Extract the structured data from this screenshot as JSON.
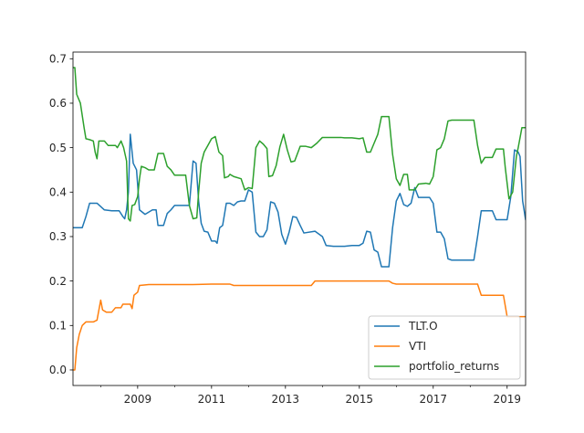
{
  "chart_data": {
    "type": "line",
    "title": "",
    "xlabel": "",
    "ylabel": "",
    "xlim": [
      2007.25,
      2019.5
    ],
    "ylim": [
      -0.035,
      0.715
    ],
    "grid": false,
    "legend_position": "lower-right",
    "y_ticks": [
      0.0,
      0.1,
      0.2,
      0.3,
      0.4,
      0.5,
      0.6,
      0.7
    ],
    "y_tick_labels": [
      "0.0",
      "0.1",
      "0.2",
      "0.3",
      "0.4",
      "0.5",
      "0.6",
      "0.7"
    ],
    "x_ticks": [
      2009,
      2011,
      2013,
      2015,
      2017,
      2019
    ],
    "x_tick_labels": [
      "2009",
      "2011",
      "2013",
      "2015",
      "2017",
      "2019"
    ],
    "x_minor_ticks": [
      2008,
      2010,
      2012,
      2014,
      2016,
      2018
    ],
    "series": [
      {
        "name": "TLT.O",
        "color": "#1f77b4",
        "points": [
          [
            2007.25,
            0.32
          ],
          [
            2007.5,
            0.32
          ],
          [
            2007.6,
            0.345
          ],
          [
            2007.7,
            0.375
          ],
          [
            2007.9,
            0.375
          ],
          [
            2008.1,
            0.36
          ],
          [
            2008.3,
            0.358
          ],
          [
            2008.5,
            0.358
          ],
          [
            2008.6,
            0.345
          ],
          [
            2008.65,
            0.34
          ],
          [
            2008.7,
            0.36
          ],
          [
            2008.75,
            0.4
          ],
          [
            2008.8,
            0.53
          ],
          [
            2008.88,
            0.465
          ],
          [
            2008.97,
            0.45
          ],
          [
            2009.05,
            0.36
          ],
          [
            2009.2,
            0.35
          ],
          [
            2009.4,
            0.36
          ],
          [
            2009.5,
            0.36
          ],
          [
            2009.55,
            0.325
          ],
          [
            2009.7,
            0.325
          ],
          [
            2009.8,
            0.352
          ],
          [
            2009.9,
            0.36
          ],
          [
            2010.0,
            0.37
          ],
          [
            2010.3,
            0.37
          ],
          [
            2010.4,
            0.37
          ],
          [
            2010.5,
            0.47
          ],
          [
            2010.58,
            0.465
          ],
          [
            2010.65,
            0.38
          ],
          [
            2010.72,
            0.33
          ],
          [
            2010.8,
            0.312
          ],
          [
            2010.9,
            0.31
          ],
          [
            2011.0,
            0.29
          ],
          [
            2011.1,
            0.29
          ],
          [
            2011.15,
            0.285
          ],
          [
            2011.22,
            0.32
          ],
          [
            2011.3,
            0.325
          ],
          [
            2011.4,
            0.375
          ],
          [
            2011.5,
            0.375
          ],
          [
            2011.6,
            0.37
          ],
          [
            2011.7,
            0.378
          ],
          [
            2011.8,
            0.38
          ],
          [
            2011.9,
            0.38
          ],
          [
            2012.0,
            0.405
          ],
          [
            2012.1,
            0.4
          ],
          [
            2012.2,
            0.31
          ],
          [
            2012.3,
            0.3
          ],
          [
            2012.4,
            0.3
          ],
          [
            2012.5,
            0.315
          ],
          [
            2012.6,
            0.378
          ],
          [
            2012.7,
            0.375
          ],
          [
            2012.8,
            0.355
          ],
          [
            2012.9,
            0.305
          ],
          [
            2013.0,
            0.283
          ],
          [
            2013.1,
            0.31
          ],
          [
            2013.2,
            0.345
          ],
          [
            2013.3,
            0.343
          ],
          [
            2013.4,
            0.325
          ],
          [
            2013.5,
            0.308
          ],
          [
            2013.8,
            0.312
          ],
          [
            2014.0,
            0.3
          ],
          [
            2014.1,
            0.28
          ],
          [
            2014.3,
            0.278
          ],
          [
            2014.5,
            0.278
          ],
          [
            2014.6,
            0.278
          ],
          [
            2014.8,
            0.28
          ],
          [
            2015.0,
            0.28
          ],
          [
            2015.1,
            0.285
          ],
          [
            2015.2,
            0.312
          ],
          [
            2015.3,
            0.31
          ],
          [
            2015.4,
            0.27
          ],
          [
            2015.5,
            0.265
          ],
          [
            2015.6,
            0.232
          ],
          [
            2015.8,
            0.232
          ],
          [
            2015.9,
            0.32
          ],
          [
            2016.0,
            0.38
          ],
          [
            2016.1,
            0.397
          ],
          [
            2016.2,
            0.372
          ],
          [
            2016.3,
            0.368
          ],
          [
            2016.4,
            0.375
          ],
          [
            2016.5,
            0.41
          ],
          [
            2016.6,
            0.388
          ],
          [
            2016.8,
            0.388
          ],
          [
            2016.9,
            0.388
          ],
          [
            2017.0,
            0.375
          ],
          [
            2017.1,
            0.31
          ],
          [
            2017.2,
            0.31
          ],
          [
            2017.3,
            0.295
          ],
          [
            2017.4,
            0.25
          ],
          [
            2017.5,
            0.247
          ],
          [
            2017.7,
            0.247
          ],
          [
            2017.9,
            0.247
          ],
          [
            2018.0,
            0.247
          ],
          [
            2018.1,
            0.247
          ],
          [
            2018.2,
            0.3
          ],
          [
            2018.3,
            0.358
          ],
          [
            2018.5,
            0.358
          ],
          [
            2018.6,
            0.358
          ],
          [
            2018.7,
            0.338
          ],
          [
            2018.9,
            0.338
          ],
          [
            2019.0,
            0.338
          ],
          [
            2019.1,
            0.39
          ],
          [
            2019.2,
            0.495
          ],
          [
            2019.3,
            0.49
          ],
          [
            2019.35,
            0.48
          ],
          [
            2019.42,
            0.38
          ],
          [
            2019.5,
            0.338
          ],
          [
            2019.6,
            0.338
          ],
          [
            2019.7,
            0.338
          ]
        ]
      },
      {
        "name": "VTI",
        "color": "#ff7f0e",
        "points": [
          [
            2007.25,
            0.0
          ],
          [
            2007.3,
            0.0
          ],
          [
            2007.35,
            0.05
          ],
          [
            2007.42,
            0.08
          ],
          [
            2007.5,
            0.1
          ],
          [
            2007.6,
            0.108
          ],
          [
            2007.8,
            0.108
          ],
          [
            2007.9,
            0.112
          ],
          [
            2008.0,
            0.157
          ],
          [
            2008.05,
            0.135
          ],
          [
            2008.15,
            0.13
          ],
          [
            2008.3,
            0.13
          ],
          [
            2008.4,
            0.14
          ],
          [
            2008.55,
            0.14
          ],
          [
            2008.6,
            0.148
          ],
          [
            2008.8,
            0.148
          ],
          [
            2008.85,
            0.138
          ],
          [
            2008.9,
            0.168
          ],
          [
            2009.0,
            0.175
          ],
          [
            2009.05,
            0.19
          ],
          [
            2009.3,
            0.192
          ],
          [
            2009.6,
            0.192
          ],
          [
            2010.0,
            0.192
          ],
          [
            2010.5,
            0.192
          ],
          [
            2011.0,
            0.193
          ],
          [
            2011.5,
            0.193
          ],
          [
            2011.6,
            0.19
          ],
          [
            2012.0,
            0.19
          ],
          [
            2012.5,
            0.19
          ],
          [
            2013.0,
            0.19
          ],
          [
            2013.5,
            0.19
          ],
          [
            2013.7,
            0.19
          ],
          [
            2013.8,
            0.2
          ],
          [
            2014.0,
            0.2
          ],
          [
            2014.2,
            0.2
          ],
          [
            2014.3,
            0.2
          ],
          [
            2015.0,
            0.2
          ],
          [
            2015.5,
            0.2
          ],
          [
            2015.8,
            0.2
          ],
          [
            2015.9,
            0.195
          ],
          [
            2016.0,
            0.193
          ],
          [
            2016.5,
            0.193
          ],
          [
            2017.0,
            0.193
          ],
          [
            2017.5,
            0.193
          ],
          [
            2018.0,
            0.193
          ],
          [
            2018.2,
            0.193
          ],
          [
            2018.3,
            0.168
          ],
          [
            2018.5,
            0.168
          ],
          [
            2018.9,
            0.168
          ],
          [
            2019.0,
            0.12
          ],
          [
            2019.5,
            0.12
          ],
          [
            2019.7,
            0.12
          ]
        ]
      },
      {
        "name": "portfolio_returns",
        "color": "#2ca02c",
        "points": [
          [
            2007.25,
            0.68
          ],
          [
            2007.3,
            0.68
          ],
          [
            2007.35,
            0.62
          ],
          [
            2007.45,
            0.6
          ],
          [
            2007.55,
            0.545
          ],
          [
            2007.6,
            0.52
          ],
          [
            2007.7,
            0.518
          ],
          [
            2007.8,
            0.515
          ],
          [
            2007.85,
            0.49
          ],
          [
            2007.9,
            0.475
          ],
          [
            2007.95,
            0.515
          ],
          [
            2008.1,
            0.515
          ],
          [
            2008.2,
            0.505
          ],
          [
            2008.4,
            0.505
          ],
          [
            2008.45,
            0.5
          ],
          [
            2008.55,
            0.515
          ],
          [
            2008.62,
            0.5
          ],
          [
            2008.7,
            0.47
          ],
          [
            2008.75,
            0.34
          ],
          [
            2008.8,
            0.335
          ],
          [
            2008.85,
            0.37
          ],
          [
            2008.92,
            0.372
          ],
          [
            2009.0,
            0.39
          ],
          [
            2009.05,
            0.43
          ],
          [
            2009.1,
            0.458
          ],
          [
            2009.2,
            0.455
          ],
          [
            2009.3,
            0.45
          ],
          [
            2009.45,
            0.45
          ],
          [
            2009.55,
            0.487
          ],
          [
            2009.7,
            0.487
          ],
          [
            2009.8,
            0.458
          ],
          [
            2009.9,
            0.45
          ],
          [
            2010.0,
            0.438
          ],
          [
            2010.3,
            0.438
          ],
          [
            2010.4,
            0.37
          ],
          [
            2010.5,
            0.34
          ],
          [
            2010.6,
            0.342
          ],
          [
            2010.65,
            0.4
          ],
          [
            2010.72,
            0.465
          ],
          [
            2010.8,
            0.49
          ],
          [
            2010.9,
            0.505
          ],
          [
            2011.0,
            0.52
          ],
          [
            2011.1,
            0.525
          ],
          [
            2011.2,
            0.49
          ],
          [
            2011.3,
            0.482
          ],
          [
            2011.35,
            0.432
          ],
          [
            2011.45,
            0.435
          ],
          [
            2011.5,
            0.44
          ],
          [
            2011.6,
            0.435
          ],
          [
            2011.8,
            0.43
          ],
          [
            2011.9,
            0.405
          ],
          [
            2012.0,
            0.41
          ],
          [
            2012.1,
            0.408
          ],
          [
            2012.2,
            0.5
          ],
          [
            2012.3,
            0.515
          ],
          [
            2012.4,
            0.508
          ],
          [
            2012.5,
            0.498
          ],
          [
            2012.55,
            0.435
          ],
          [
            2012.65,
            0.437
          ],
          [
            2012.75,
            0.46
          ],
          [
            2012.85,
            0.502
          ],
          [
            2012.95,
            0.53
          ],
          [
            2013.05,
            0.495
          ],
          [
            2013.15,
            0.468
          ],
          [
            2013.25,
            0.47
          ],
          [
            2013.4,
            0.503
          ],
          [
            2013.55,
            0.503
          ],
          [
            2013.7,
            0.5
          ],
          [
            2013.85,
            0.51
          ],
          [
            2014.0,
            0.523
          ],
          [
            2014.2,
            0.523
          ],
          [
            2014.5,
            0.523
          ],
          [
            2014.6,
            0.522
          ],
          [
            2014.8,
            0.522
          ],
          [
            2015.0,
            0.52
          ],
          [
            2015.1,
            0.522
          ],
          [
            2015.2,
            0.49
          ],
          [
            2015.3,
            0.49
          ],
          [
            2015.4,
            0.51
          ],
          [
            2015.5,
            0.53
          ],
          [
            2015.6,
            0.57
          ],
          [
            2015.8,
            0.57
          ],
          [
            2015.9,
            0.485
          ],
          [
            2016.0,
            0.43
          ],
          [
            2016.1,
            0.415
          ],
          [
            2016.2,
            0.44
          ],
          [
            2016.3,
            0.44
          ],
          [
            2016.35,
            0.405
          ],
          [
            2016.5,
            0.405
          ],
          [
            2016.6,
            0.418
          ],
          [
            2016.8,
            0.42
          ],
          [
            2016.9,
            0.418
          ],
          [
            2017.0,
            0.435
          ],
          [
            2017.1,
            0.495
          ],
          [
            2017.2,
            0.5
          ],
          [
            2017.3,
            0.52
          ],
          [
            2017.4,
            0.56
          ],
          [
            2017.5,
            0.562
          ],
          [
            2017.8,
            0.562
          ],
          [
            2018.0,
            0.562
          ],
          [
            2018.1,
            0.562
          ],
          [
            2018.2,
            0.505
          ],
          [
            2018.3,
            0.465
          ],
          [
            2018.4,
            0.478
          ],
          [
            2018.6,
            0.478
          ],
          [
            2018.7,
            0.497
          ],
          [
            2018.9,
            0.497
          ],
          [
            2018.95,
            0.455
          ],
          [
            2019.05,
            0.385
          ],
          [
            2019.15,
            0.4
          ],
          [
            2019.25,
            0.48
          ],
          [
            2019.3,
            0.5
          ],
          [
            2019.4,
            0.545
          ],
          [
            2019.5,
            0.545
          ],
          [
            2019.6,
            0.545
          ],
          [
            2019.7,
            0.545
          ]
        ]
      }
    ]
  }
}
